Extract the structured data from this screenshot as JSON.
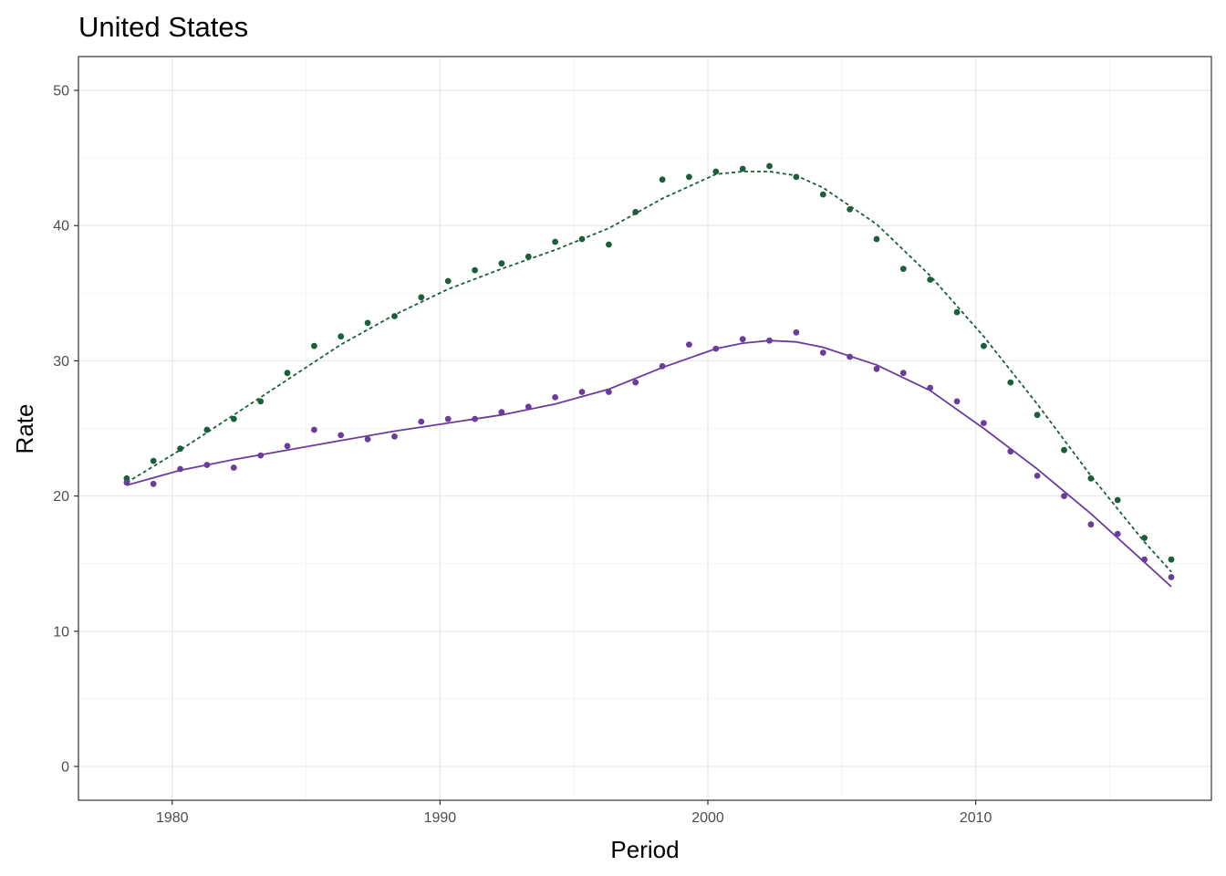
{
  "chart_data": {
    "type": "scatter",
    "title": "United States",
    "xlabel": "Period",
    "ylabel": "Rate",
    "xlim": [
      1976.5,
      2018.8
    ],
    "ylim": [
      -2.5,
      52.5
    ],
    "xticks": [
      1980,
      1990,
      2000,
      2010
    ],
    "yticks": [
      0,
      10,
      20,
      30,
      40,
      50
    ],
    "grid": true,
    "legend": "none",
    "series": [
      {
        "color": "#1b5e3b",
        "line_style": "dashed",
        "points": {
          "x": [
            1978.3,
            1979.3,
            1980.3,
            1981.3,
            1982.3,
            1983.3,
            1984.3,
            1985.3,
            1986.3,
            1987.3,
            1988.3,
            1989.3,
            1990.3,
            1991.3,
            1992.3,
            1993.3,
            1994.3,
            1995.3,
            1996.3,
            1997.3,
            1998.3,
            1999.3,
            2000.3,
            2001.3,
            2002.3,
            2003.3,
            2004.3,
            2005.3,
            2006.3,
            2007.3,
            2008.3,
            2009.3,
            2010.3,
            2011.3,
            2012.3,
            2013.3,
            2014.3,
            2015.3,
            2016.3,
            2017.3
          ],
          "y": [
            21.3,
            22.6,
            23.5,
            24.9,
            25.7,
            27.0,
            29.1,
            31.1,
            31.8,
            32.8,
            33.3,
            34.7,
            35.9,
            36.7,
            37.2,
            37.7,
            38.8,
            39.0,
            38.6,
            41.0,
            43.4,
            43.6,
            44.0,
            44.2,
            44.4,
            43.6,
            42.3,
            41.2,
            39.0,
            36.8,
            36.0,
            33.6,
            31.1,
            28.4,
            26.0,
            23.4,
            21.3,
            19.7,
            16.9,
            15.3
          ]
        },
        "fit": {
          "x": [
            1978.3,
            1980.3,
            1982.3,
            1984.3,
            1986.3,
            1988.3,
            1990.3,
            1992.3,
            1994.3,
            1996.3,
            1998.3,
            2000.3,
            2001.3,
            2002.3,
            2003.3,
            2004.3,
            2006.3,
            2008.3,
            2010.3,
            2012.3,
            2014.3,
            2016.3,
            2017.3
          ],
          "y": [
            21.0,
            23.4,
            26.0,
            28.6,
            31.2,
            33.4,
            35.3,
            36.8,
            38.2,
            39.8,
            42.0,
            43.8,
            44.0,
            44.0,
            43.7,
            42.8,
            40.1,
            36.3,
            31.8,
            26.8,
            21.5,
            16.6,
            14.4
          ]
        }
      },
      {
        "color": "#6a3d9a",
        "line_style": "solid",
        "points": {
          "x": [
            1978.3,
            1979.3,
            1980.3,
            1981.3,
            1982.3,
            1983.3,
            1984.3,
            1985.3,
            1986.3,
            1987.3,
            1988.3,
            1989.3,
            1990.3,
            1991.3,
            1992.3,
            1993.3,
            1994.3,
            1995.3,
            1996.3,
            1997.3,
            1998.3,
            1999.3,
            2000.3,
            2001.3,
            2002.3,
            2003.3,
            2004.3,
            2005.3,
            2006.3,
            2007.3,
            2008.3,
            2009.3,
            2010.3,
            2011.3,
            2012.3,
            2013.3,
            2014.3,
            2015.3,
            2016.3,
            2017.3
          ],
          "y": [
            21.0,
            20.9,
            22.0,
            22.3,
            22.1,
            23.0,
            23.7,
            24.9,
            24.5,
            24.2,
            24.4,
            25.5,
            25.7,
            25.7,
            26.2,
            26.6,
            27.3,
            27.7,
            27.7,
            28.4,
            29.6,
            31.2,
            30.9,
            31.6,
            31.5,
            32.1,
            30.6,
            30.3,
            29.4,
            29.1,
            28.0,
            27.0,
            25.4,
            23.3,
            21.5,
            20.0,
            17.9,
            17.2,
            15.3,
            14.0
          ]
        },
        "fit": {
          "x": [
            1978.3,
            1980.3,
            1982.3,
            1984.3,
            1986.3,
            1988.3,
            1990.3,
            1992.3,
            1994.3,
            1996.3,
            1998.3,
            2000.3,
            2001.3,
            2002.3,
            2003.3,
            2004.3,
            2006.3,
            2008.3,
            2010.3,
            2012.3,
            2014.3,
            2016.3,
            2017.3
          ],
          "y": [
            20.8,
            21.9,
            22.7,
            23.4,
            24.1,
            24.8,
            25.4,
            26.0,
            26.8,
            27.9,
            29.5,
            30.9,
            31.3,
            31.5,
            31.4,
            31.0,
            29.7,
            27.8,
            25.0,
            22.0,
            18.7,
            15.1,
            13.3
          ]
        }
      }
    ]
  }
}
